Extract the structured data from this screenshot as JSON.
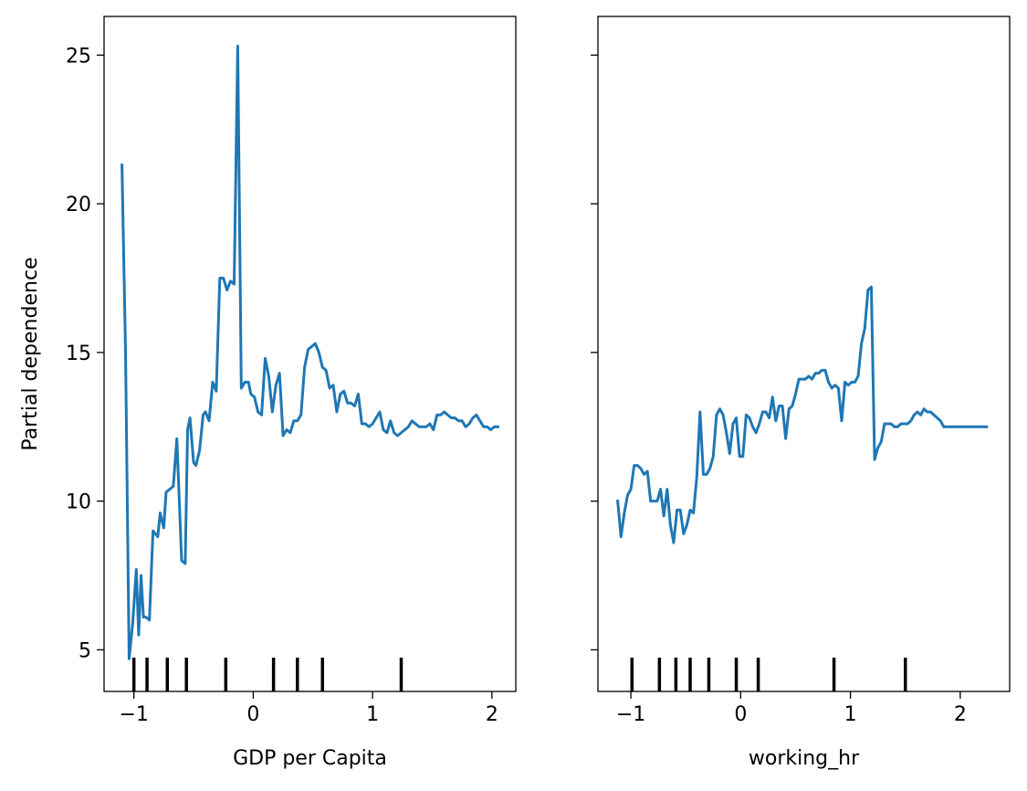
{
  "chart_data": [
    {
      "type": "line",
      "xlabel": "GDP per Capita",
      "ylabel": "Partial dependence",
      "xlim": [
        -1.25,
        2.2
      ],
      "ylim": [
        3.6,
        26.3
      ],
      "xticks": [
        -1,
        0,
        1,
        2
      ],
      "xtick_labels": [
        "−1",
        "0",
        "1",
        "2"
      ],
      "yticks": [
        5,
        10,
        15,
        20,
        25
      ],
      "ytick_labels": [
        "5",
        "10",
        "15",
        "20",
        "25"
      ],
      "line_color": "#1f77b4",
      "rug_x": [
        -1.0,
        -0.89,
        -0.72,
        -0.56,
        -0.23,
        0.17,
        0.37,
        0.58,
        1.24
      ],
      "series": [
        {
          "x": [
            -1.1,
            -1.07,
            -1.04,
            -1.01,
            -0.98,
            -0.96,
            -0.94,
            -0.92,
            -0.9,
            -0.87,
            -0.84,
            -0.8,
            -0.78,
            -0.75,
            -0.73,
            -0.7,
            -0.67,
            -0.64,
            -0.6,
            -0.57,
            -0.55,
            -0.53,
            -0.5,
            -0.48,
            -0.45,
            -0.42,
            -0.4,
            -0.37,
            -0.34,
            -0.31,
            -0.28,
            -0.25,
            -0.22,
            -0.19,
            -0.16,
            -0.13,
            -0.1,
            -0.07,
            -0.04,
            -0.02,
            0.01,
            0.04,
            0.07,
            0.1,
            0.13,
            0.16,
            0.19,
            0.22,
            0.25,
            0.28,
            0.31,
            0.34,
            0.37,
            0.4,
            0.43,
            0.46,
            0.49,
            0.52,
            0.55,
            0.58,
            0.61,
            0.64,
            0.67,
            0.7,
            0.73,
            0.76,
            0.79,
            0.82,
            0.85,
            0.88,
            0.91,
            0.94,
            0.97,
            1.0,
            1.03,
            1.06,
            1.09,
            1.12,
            1.15,
            1.18,
            1.21,
            1.24,
            1.27,
            1.3,
            1.33,
            1.36,
            1.39,
            1.42,
            1.45,
            1.48,
            1.51,
            1.54,
            1.57,
            1.6,
            1.63,
            1.66,
            1.69,
            1.72,
            1.75,
            1.78,
            1.81,
            1.84,
            1.87,
            1.9,
            1.93,
            1.96,
            1.99,
            2.02,
            2.05
          ],
          "y": [
            21.3,
            15.0,
            4.7,
            5.9,
            7.7,
            5.5,
            7.5,
            6.1,
            6.1,
            6.0,
            9.0,
            8.8,
            9.6,
            9.1,
            10.3,
            10.4,
            10.5,
            12.1,
            8.0,
            7.9,
            12.4,
            12.8,
            11.3,
            11.2,
            11.7,
            12.9,
            13.0,
            12.7,
            14.0,
            13.7,
            17.5,
            17.5,
            17.1,
            17.4,
            17.3,
            25.3,
            13.8,
            14.0,
            14.0,
            13.6,
            13.5,
            13.0,
            12.9,
            14.8,
            14.2,
            13.0,
            13.9,
            14.3,
            12.2,
            12.4,
            12.3,
            12.7,
            12.7,
            12.9,
            14.5,
            15.1,
            15.2,
            15.3,
            15.0,
            14.5,
            14.4,
            13.8,
            13.9,
            13.0,
            13.6,
            13.7,
            13.3,
            13.3,
            13.2,
            13.6,
            12.6,
            12.6,
            12.5,
            12.6,
            12.8,
            13.0,
            12.4,
            12.3,
            12.7,
            12.3,
            12.2,
            12.3,
            12.4,
            12.5,
            12.7,
            12.6,
            12.5,
            12.5,
            12.5,
            12.6,
            12.4,
            12.9,
            12.9,
            13.0,
            12.9,
            12.8,
            12.8,
            12.7,
            12.7,
            12.5,
            12.6,
            12.8,
            12.9,
            12.7,
            12.5,
            12.5,
            12.4,
            12.5,
            12.5
          ]
        }
      ]
    },
    {
      "type": "line",
      "xlabel": "working_hr",
      "ylabel": "",
      "xlim": [
        -1.3,
        2.45
      ],
      "ylim": [
        3.6,
        26.3
      ],
      "xticks": [
        -1,
        0,
        1,
        2
      ],
      "xtick_labels": [
        "−1",
        "0",
        "1",
        "2"
      ],
      "yticks": [
        5,
        10,
        15,
        20,
        25
      ],
      "ytick_labels": [
        "",
        "",
        "",
        "",
        ""
      ],
      "line_color": "#1f77b4",
      "rug_x": [
        -0.99,
        -0.74,
        -0.59,
        -0.46,
        -0.29,
        -0.04,
        0.16,
        0.85,
        1.5
      ],
      "series": [
        {
          "x": [
            -1.12,
            -1.09,
            -1.06,
            -1.03,
            -1.0,
            -0.97,
            -0.94,
            -0.91,
            -0.88,
            -0.85,
            -0.82,
            -0.79,
            -0.76,
            -0.73,
            -0.7,
            -0.67,
            -0.64,
            -0.61,
            -0.58,
            -0.55,
            -0.52,
            -0.49,
            -0.46,
            -0.43,
            -0.4,
            -0.37,
            -0.34,
            -0.31,
            -0.28,
            -0.25,
            -0.22,
            -0.19,
            -0.16,
            -0.13,
            -0.1,
            -0.07,
            -0.04,
            -0.01,
            0.02,
            0.05,
            0.08,
            0.11,
            0.14,
            0.17,
            0.2,
            0.23,
            0.26,
            0.29,
            0.32,
            0.35,
            0.38,
            0.41,
            0.44,
            0.47,
            0.5,
            0.53,
            0.56,
            0.59,
            0.62,
            0.65,
            0.68,
            0.71,
            0.74,
            0.77,
            0.8,
            0.83,
            0.86,
            0.89,
            0.92,
            0.95,
            0.98,
            1.01,
            1.04,
            1.07,
            1.1,
            1.13,
            1.16,
            1.19,
            1.22,
            1.25,
            1.28,
            1.31,
            1.34,
            1.37,
            1.4,
            1.43,
            1.46,
            1.49,
            1.52,
            1.55,
            1.58,
            1.61,
            1.64,
            1.67,
            1.7,
            1.73,
            1.76,
            1.79,
            1.82,
            1.85,
            1.88,
            1.91,
            1.94,
            1.97,
            2.0,
            2.03,
            2.06,
            2.09,
            2.12,
            2.15,
            2.18,
            2.21,
            2.24
          ],
          "y": [
            10.0,
            8.8,
            9.6,
            10.2,
            10.4,
            11.2,
            11.2,
            11.1,
            10.9,
            11.0,
            10.0,
            10.0,
            10.0,
            10.4,
            9.5,
            10.4,
            9.2,
            8.6,
            9.7,
            9.7,
            8.9,
            9.2,
            9.7,
            9.6,
            10.8,
            13.0,
            10.9,
            10.9,
            11.1,
            11.5,
            12.9,
            13.1,
            12.9,
            12.3,
            11.6,
            12.6,
            12.8,
            11.5,
            11.5,
            12.9,
            12.8,
            12.5,
            12.3,
            12.6,
            13.0,
            13.0,
            12.8,
            13.5,
            12.7,
            13.2,
            13.2,
            12.1,
            13.1,
            13.2,
            13.6,
            14.1,
            14.1,
            14.1,
            14.2,
            14.1,
            14.3,
            14.3,
            14.4,
            14.4,
            14.0,
            13.8,
            13.9,
            13.8,
            12.7,
            14.0,
            13.9,
            14.0,
            14.0,
            14.2,
            15.3,
            15.8,
            17.1,
            17.2,
            11.4,
            11.8,
            12.0,
            12.6,
            12.6,
            12.6,
            12.5,
            12.5,
            12.6,
            12.6,
            12.6,
            12.7,
            12.9,
            13.0,
            12.9,
            13.1,
            13.0,
            13.0,
            12.9,
            12.8,
            12.7,
            12.5,
            12.5,
            12.5,
            12.5,
            12.5,
            12.5,
            12.5,
            12.5,
            12.5,
            12.5,
            12.5,
            12.5,
            12.5,
            12.5
          ]
        }
      ]
    }
  ]
}
